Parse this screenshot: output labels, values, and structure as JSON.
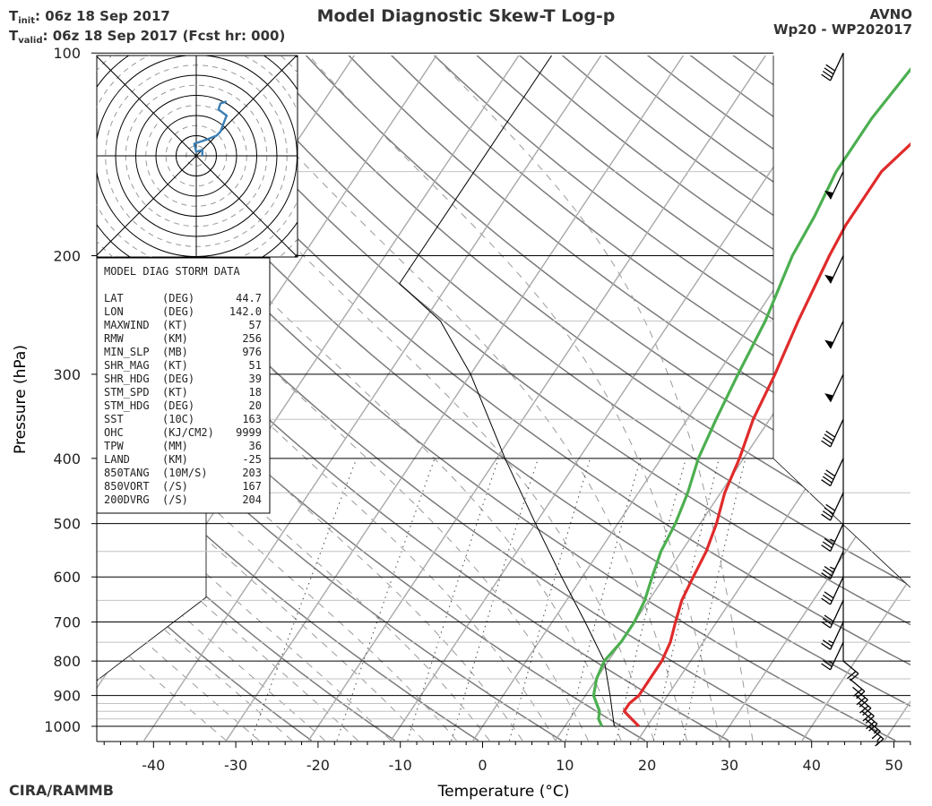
{
  "header": {
    "init_label": "T",
    "init_sub": "init",
    "init_value": ":  06z 18 Sep 2017",
    "valid_label": "T",
    "valid_sub": "valid",
    "valid_value": ": 06z 18 Sep 2017 (Fcst hr: 000)",
    "title": "Model Diagnostic Skew-T Log-p",
    "model": "AVNO",
    "storm": "Wp20 - WP202017"
  },
  "footer": {
    "credit": "CIRA/RAMMB"
  },
  "colors": {
    "temperature": "#e02b2b",
    "dewpoint": "#4caf50",
    "hodograph": "#3a7fb5",
    "axis": "#000000"
  },
  "chart_data": {
    "type": "skew-t",
    "title": "Model Diagnostic Skew-T Log-p",
    "xlabel": "Temperature (°C)",
    "ylabel": "Pressure (hPa)",
    "xlim": [
      -47,
      52
    ],
    "ylim": [
      1050,
      100
    ],
    "x_ticks": [
      -40,
      -30,
      -20,
      -10,
      0,
      10,
      20,
      30,
      40,
      50
    ],
    "x_tick_labels": [
      "-40",
      "-30",
      "-20",
      "-10",
      "0",
      "10",
      "20",
      "30",
      "40",
      "50"
    ],
    "p_ticks": [
      100,
      200,
      300,
      400,
      500,
      600,
      700,
      800,
      900,
      1000
    ],
    "p_tick_labels": [
      "100",
      "200",
      "300",
      "400",
      "500",
      "600",
      "700",
      "800",
      "900",
      "1000"
    ],
    "temperature_profile": {
      "name": "Temperature",
      "points": [
        {
          "p": 1000,
          "t": 19.0
        },
        {
          "p": 950,
          "t": 16.0
        },
        {
          "p": 925,
          "t": 16.0
        },
        {
          "p": 900,
          "t": 16.5
        },
        {
          "p": 850,
          "t": 16.5
        },
        {
          "p": 800,
          "t": 16.5
        },
        {
          "p": 750,
          "t": 16.0
        },
        {
          "p": 700,
          "t": 15.0
        },
        {
          "p": 650,
          "t": 14.0
        },
        {
          "p": 600,
          "t": 13.5
        },
        {
          "p": 550,
          "t": 13.0
        },
        {
          "p": 500,
          "t": 12.0
        },
        {
          "p": 450,
          "t": 10.5
        },
        {
          "p": 400,
          "t": 9.5
        },
        {
          "p": 350,
          "t": 8.0
        },
        {
          "p": 300,
          "t": 7.0
        },
        {
          "p": 250,
          "t": 5.5
        },
        {
          "p": 200,
          "t": 4.0
        },
        {
          "p": 180,
          "t": 3.5
        },
        {
          "p": 150,
          "t": 3.5
        },
        {
          "p": 130,
          "t": 5.5
        },
        {
          "p": 100,
          "t": 12.0
        }
      ]
    },
    "dewpoint_profile": {
      "name": "Dewpoint",
      "points": [
        {
          "p": 1000,
          "t": 14.5
        },
        {
          "p": 975,
          "t": 13.5
        },
        {
          "p": 950,
          "t": 13.0
        },
        {
          "p": 900,
          "t": 11.0
        },
        {
          "p": 850,
          "t": 10.0
        },
        {
          "p": 800,
          "t": 9.5
        },
        {
          "p": 750,
          "t": 10.0
        },
        {
          "p": 700,
          "t": 10.0
        },
        {
          "p": 650,
          "t": 9.5
        },
        {
          "p": 600,
          "t": 8.5
        },
        {
          "p": 550,
          "t": 7.5
        },
        {
          "p": 500,
          "t": 7.0
        },
        {
          "p": 450,
          "t": 6.0
        },
        {
          "p": 400,
          "t": 4.5
        },
        {
          "p": 350,
          "t": 3.5
        },
        {
          "p": 300,
          "t": 2.5
        },
        {
          "p": 250,
          "t": 1.5
        },
        {
          "p": 200,
          "t": -0.5
        },
        {
          "p": 175,
          "t": -1.0
        },
        {
          "p": 150,
          "t": -2.0
        },
        {
          "p": 125,
          "t": -2.0
        },
        {
          "p": 100,
          "t": -1.0
        }
      ]
    },
    "parcel_path": {
      "name": "Parcel",
      "points": [
        {
          "p": 1000,
          "t": 16.0
        },
        {
          "p": 900,
          "t": 13.0
        },
        {
          "p": 800,
          "t": 9.5
        },
        {
          "p": 700,
          "t": 4.0
        },
        {
          "p": 600,
          "t": -2.5
        },
        {
          "p": 500,
          "t": -10.0
        },
        {
          "p": 400,
          "t": -19.0
        },
        {
          "p": 300,
          "t": -30.0
        },
        {
          "p": 250,
          "t": -38.0
        },
        {
          "p": 220,
          "t": -46.0
        },
        {
          "p": 100,
          "t": -46.0
        }
      ]
    },
    "hodograph": {
      "name": "Hodograph",
      "units": "kt",
      "ring_step": 10,
      "points": [
        {
          "u": 3,
          "v": 0
        },
        {
          "u": 3,
          "v": 3
        },
        {
          "u": 0,
          "v": 2
        },
        {
          "u": -1,
          "v": 6
        },
        {
          "u": 5,
          "v": 8
        },
        {
          "u": 10,
          "v": 10
        },
        {
          "u": 12,
          "v": 12
        },
        {
          "u": 15,
          "v": 20
        },
        {
          "u": 11,
          "v": 23
        },
        {
          "u": 12,
          "v": 26
        },
        {
          "u": 15,
          "v": 27
        }
      ]
    },
    "wind_barbs": [
      {
        "p": 100,
        "speed": 40
      },
      {
        "p": 150,
        "speed": 50
      },
      {
        "p": 200,
        "speed": 50
      },
      {
        "p": 250,
        "speed": 50
      },
      {
        "p": 300,
        "speed": 50
      },
      {
        "p": 350,
        "speed": 40
      },
      {
        "p": 400,
        "speed": 40
      },
      {
        "p": 450,
        "speed": 40
      },
      {
        "p": 500,
        "speed": 35
      },
      {
        "p": 550,
        "speed": 35
      },
      {
        "p": 600,
        "speed": 30
      },
      {
        "p": 650,
        "speed": 30
      },
      {
        "p": 700,
        "speed": 25
      },
      {
        "p": 750,
        "speed": 25
      },
      {
        "p": 800,
        "speed": 20
      },
      {
        "p": 850,
        "speed": 20
      },
      {
        "p": 875,
        "speed": 20
      },
      {
        "p": 900,
        "speed": 20
      },
      {
        "p": 925,
        "speed": 20
      },
      {
        "p": 950,
        "speed": 20
      },
      {
        "p": 975,
        "speed": 15
      },
      {
        "p": 1000,
        "speed": 15
      }
    ],
    "storm_table": {
      "title": "MODEL DIAG STORM DATA",
      "rows": [
        [
          "LAT",
          "(DEG)",
          "44.7"
        ],
        [
          "LON",
          "(DEG)",
          "142.0"
        ],
        [
          "MAXWIND",
          "(KT)",
          "57"
        ],
        [
          "RMW",
          "(KM)",
          "256"
        ],
        [
          "MIN_SLP",
          "(MB)",
          "976"
        ],
        [
          "SHR_MAG",
          "(KT)",
          "51"
        ],
        [
          "SHR_HDG",
          "(DEG)",
          "39"
        ],
        [
          "STM_SPD",
          "(KT)",
          "18"
        ],
        [
          "STM_HDG",
          "(DEG)",
          "20"
        ],
        [
          "SST",
          "(10C)",
          "163"
        ],
        [
          "OHC",
          "(KJ/CM2)",
          "9999"
        ],
        [
          "TPW",
          "(MM)",
          "36"
        ],
        [
          "LAND",
          "(KM)",
          "-25"
        ],
        [
          "850TANG",
          "(10M/S)",
          "203"
        ],
        [
          "850VORT",
          "(/S)",
          "167"
        ],
        [
          "200DVRG",
          "(/S)",
          "204"
        ]
      ]
    }
  }
}
